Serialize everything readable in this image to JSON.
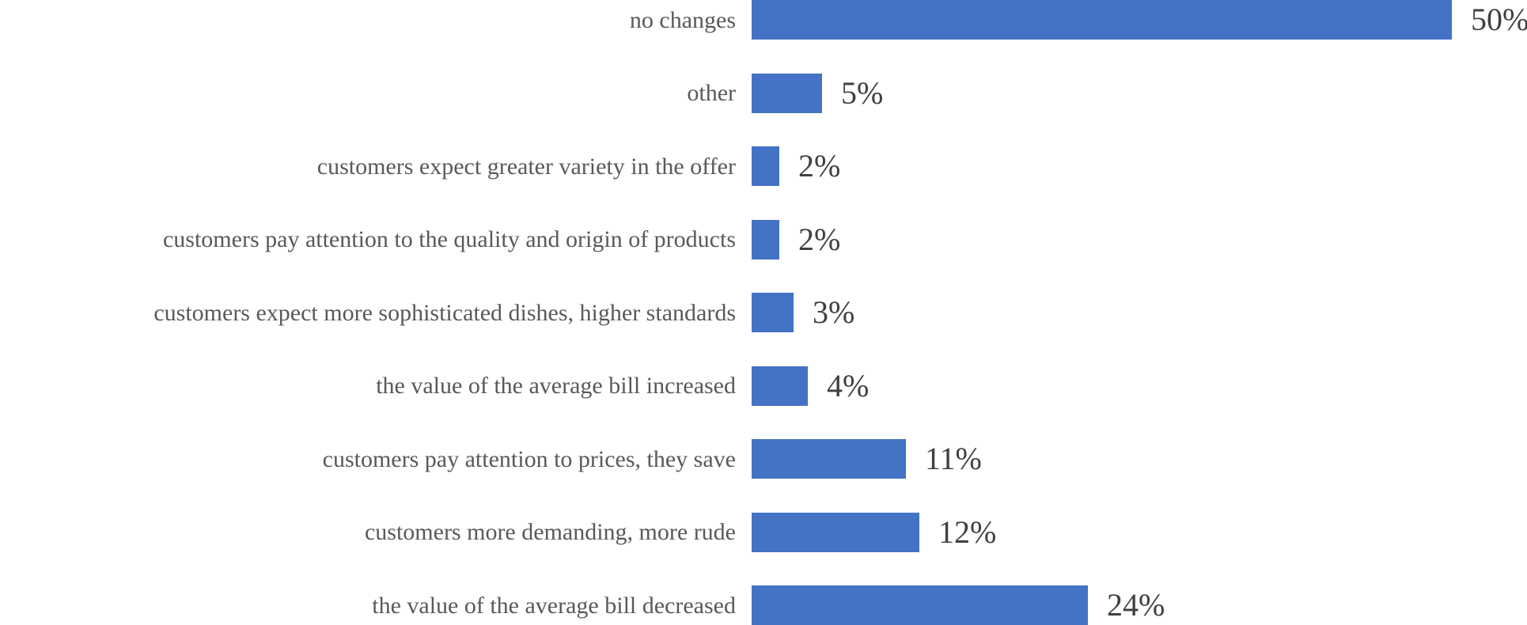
{
  "chart_data": {
    "type": "bar",
    "orientation": "horizontal",
    "title": "",
    "xlabel": "",
    "ylabel": "",
    "grid": false,
    "legend": "none",
    "axis_ticks_visible": false,
    "xlim": [
      0,
      55
    ],
    "categories": [
      "no changes",
      "other",
      "customers expect greater variety in the offer",
      "customers pay attention to the quality and origin of products",
      "customers expect more sophisticated dishes, higher standards",
      "the value of the average bill increased",
      "customers pay attention to prices, they save",
      "customers more demanding, more rude",
      "the value of the average bill decreased"
    ],
    "values": [
      50,
      5,
      2,
      2,
      3,
      4,
      11,
      12,
      24
    ],
    "value_labels": [
      "50%",
      "5%",
      "2%",
      "2%",
      "3%",
      "4%",
      "11%",
      "12%",
      "24%"
    ],
    "colors": {
      "bar": "#4472C4",
      "category_text": "#595959",
      "value_text": "#404040",
      "background": "#ffffff"
    }
  }
}
